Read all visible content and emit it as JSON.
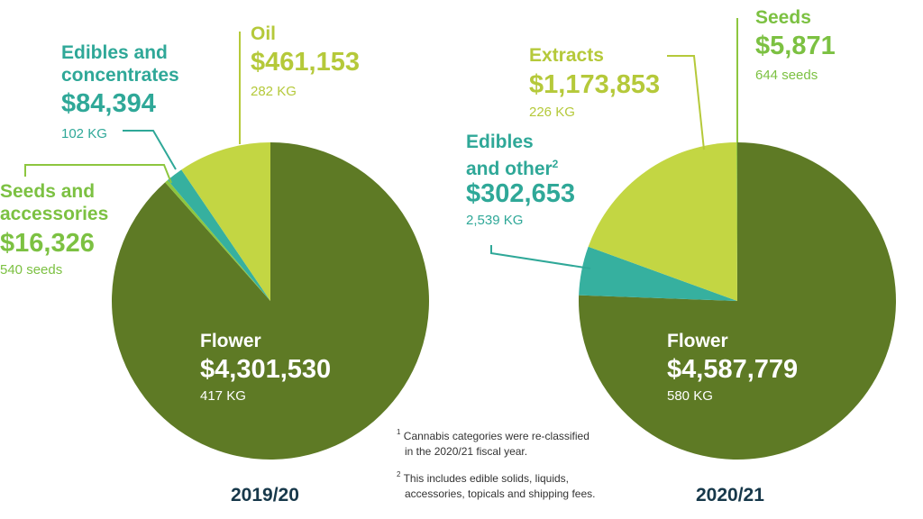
{
  "colors": {
    "flower": "#5e7a25",
    "oil_extracts": "#c3d643",
    "edibles": "#36b09f",
    "seeds": "#8dc63f",
    "teal_text": "#2fa898",
    "lime_text": "#b5c93a",
    "green_text": "#7cc142",
    "year_text": "#17384a"
  },
  "chart_data": [
    {
      "type": "pie",
      "year_label": "2019/20",
      "slices": [
        {
          "name": "Flower",
          "value": 4301530,
          "value_label": "$4,301,530",
          "qty": "417 KG"
        },
        {
          "name": "Seeds and accessories",
          "name_lines": [
            "Seeds and",
            "accessories"
          ],
          "value": 16326,
          "value_label": "$16,326",
          "qty": "540 seeds"
        },
        {
          "name": "Edibles and concentrates",
          "name_lines": [
            "Edibles and",
            "concentrates"
          ],
          "value": 84394,
          "value_label": "$84,394",
          "qty": "102 KG"
        },
        {
          "name": "Oil",
          "name_lines": [
            "Oil"
          ],
          "value": 461153,
          "value_label": "$461,153",
          "qty": "282 KG"
        }
      ]
    },
    {
      "type": "pie",
      "year_label": "2020/21",
      "slices": [
        {
          "name": "Flower",
          "value": 4587779,
          "value_label": "$4,587,779",
          "qty": "580 KG"
        },
        {
          "name": "Edibles and other",
          "name_lines": [
            "Edibles",
            "and other"
          ],
          "footnote_mark": "2",
          "value": 302653,
          "value_label": "$302,653",
          "qty": "2,539 KG"
        },
        {
          "name": "Extracts",
          "name_lines": [
            "Extracts"
          ],
          "value": 1173853,
          "value_label": "$1,173,853",
          "qty": "226 KG"
        },
        {
          "name": "Seeds",
          "name_lines": [
            "Seeds"
          ],
          "value": 5871,
          "value_label": "$5,871",
          "qty": "644 seeds"
        }
      ]
    }
  ],
  "footnotes": [
    {
      "mark": "1",
      "lines": [
        "Cannabis categories were re-classified",
        "in the 2020/21 fiscal year."
      ]
    },
    {
      "mark": "2",
      "lines": [
        "This includes edible solids, liquids,",
        "accessories, topicals and shipping fees."
      ]
    }
  ]
}
